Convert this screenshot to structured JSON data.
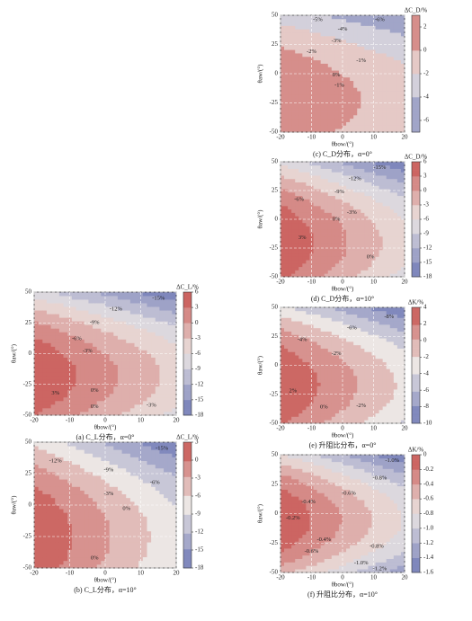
{
  "chart_data": [
    {
      "type": "contour",
      "caption": "(a) C_L分布，α=0°",
      "xlabel": "θbow/(°)",
      "ylabel": "θaw/(°)",
      "colorbar_label": "ΔC_L/%",
      "xlim": [
        -20,
        20
      ],
      "ylim": [
        -50,
        50
      ],
      "xticks": [
        -20,
        -10,
        0,
        10,
        20
      ],
      "yticks": [
        -50,
        -25,
        0,
        25,
        50
      ],
      "clim": [
        -18,
        6
      ],
      "cticks": [
        6,
        3,
        0,
        -3,
        -6,
        -9,
        -12,
        -15,
        -18
      ],
      "cmap": [
        "#6f79b6",
        "#ece6e4",
        "#c7534f"
      ],
      "annotations": [
        "-15%",
        "-12%",
        "-9%",
        "-6%",
        "-3%",
        "0%",
        "3%",
        "0%",
        "-3%"
      ]
    },
    {
      "type": "contour",
      "caption": "(b) C_L分布，α=10°",
      "xlabel": "θbow/(°)",
      "ylabel": "θaw/(°)",
      "colorbar_label": "ΔC_L/%",
      "xlim": [
        -20,
        20
      ],
      "ylim": [
        -50,
        50
      ],
      "xticks": [
        -20,
        -10,
        0,
        10,
        20
      ],
      "yticks": [
        -50,
        -25,
        0,
        25,
        50
      ],
      "clim": [
        -18,
        3
      ],
      "cticks": [
        3,
        0,
        -3,
        -6,
        -9,
        -12,
        -15,
        -18
      ],
      "cmap": [
        "#6f79b6",
        "#ece6e4",
        "#c7534f"
      ],
      "annotations": [
        "-15%",
        "-12%",
        "-9%",
        "-6%",
        "-3%",
        "0%",
        "0%"
      ]
    },
    {
      "type": "contour",
      "caption": "(c) C_D分布，α=0°",
      "xlabel": "θbow/(°)",
      "ylabel": "θaw/(°)",
      "colorbar_label": "ΔC_D/%",
      "xlim": [
        -20,
        20
      ],
      "ylim": [
        -50,
        50
      ],
      "xticks": [
        -20,
        -10,
        0,
        10,
        20
      ],
      "yticks": [
        -50,
        -25,
        0,
        25,
        50
      ],
      "clim": [
        -7,
        3
      ],
      "cticks": [
        2,
        0,
        -2,
        -4,
        -6
      ],
      "cmap": [
        "#6f79b6",
        "#ece6e4",
        "#c7534f"
      ],
      "annotations": [
        "-5%",
        "-6%",
        "-4%",
        "-3%",
        "-2%",
        "-1%",
        "0%",
        "-1%"
      ]
    },
    {
      "type": "contour",
      "caption": "(d) C_D分布，α=10°",
      "xlabel": "θbow/(°)",
      "ylabel": "θaw/(°)",
      "colorbar_label": "ΔC_D/%",
      "xlim": [
        -20,
        20
      ],
      "ylim": [
        -50,
        50
      ],
      "xticks": [
        -20,
        -10,
        0,
        10,
        20
      ],
      "yticks": [
        -50,
        -25,
        0,
        25,
        50
      ],
      "clim": [
        -18,
        6
      ],
      "cticks": [
        6,
        3,
        0,
        -3,
        -6,
        -9,
        -12,
        -15,
        -18
      ],
      "cmap": [
        "#6f79b6",
        "#ece6e4",
        "#c7534f"
      ],
      "annotations": [
        "-15%",
        "-12%",
        "-9%",
        "-6%",
        "-3%",
        "0%",
        "3%",
        "0%"
      ]
    },
    {
      "type": "contour",
      "caption": "(e) 升阻比分布，α=0°",
      "xlabel": "θbow/(°)",
      "ylabel": "θaw/(°)",
      "colorbar_label": "ΔK/%",
      "xlim": [
        -20,
        20
      ],
      "ylim": [
        -50,
        50
      ],
      "xticks": [
        -20,
        -10,
        0,
        10,
        20
      ],
      "yticks": [
        -50,
        -25,
        0,
        25,
        50
      ],
      "clim": [
        -10,
        4
      ],
      "cticks": [
        4,
        2,
        0,
        -2,
        -4,
        -6,
        -8,
        -10
      ],
      "cmap": [
        "#6f79b6",
        "#ece6e4",
        "#c7534f"
      ],
      "annotations": [
        "-8%",
        "-6%",
        "-4%",
        "-2%",
        "0%",
        "2%",
        "-2%"
      ]
    },
    {
      "type": "contour",
      "caption": "(f) 升阻比分布，α=10°",
      "xlabel": "θbow/(°)",
      "ylabel": "θaw/(°)",
      "colorbar_label": "ΔK/%",
      "xlim": [
        -20,
        20
      ],
      "ylim": [
        -50,
        50
      ],
      "xticks": [
        -20,
        -10,
        0,
        10,
        20
      ],
      "yticks": [
        -50,
        -25,
        0,
        25,
        50
      ],
      "clim": [
        -1.6,
        0
      ],
      "cticks": [
        0,
        -0.2,
        -0.4,
        -0.6,
        -0.8,
        {
          "value": -1,
          "label": "-1.0"
        },
        -1.2,
        -1.4,
        -1.6
      ],
      "cmap": [
        "#6f79b6",
        "#ece6e4",
        "#c7534f"
      ],
      "annotations": [
        "-1.0%",
        "-0.8%",
        "-0.6%",
        "-0.4%",
        "-0.2%",
        "-0.4%",
        "-0.6%",
        "-0.8%",
        "-1.0%",
        "-1.2%"
      ]
    }
  ]
}
